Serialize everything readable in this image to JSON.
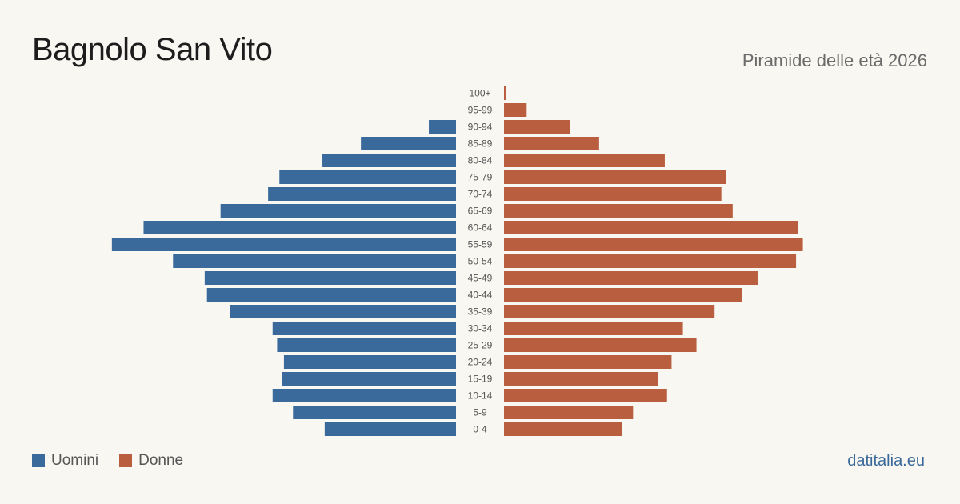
{
  "header": {
    "title": "Bagnolo San Vito",
    "subtitle": "Piramide delle età 2026"
  },
  "legend": {
    "men_label": "Uomini",
    "women_label": "Donne"
  },
  "footer": {
    "source": "datitalia.eu"
  },
  "colors": {
    "men": "#3a6a9b",
    "women": "#b95e3e",
    "background": "#f9f7f2"
  },
  "chart_data": {
    "type": "bar",
    "orientation": "horizontal-pyramid",
    "categories": [
      "100+",
      "95-99",
      "90-94",
      "85-89",
      "80-84",
      "75-79",
      "70-74",
      "65-69",
      "60-64",
      "55-59",
      "50-54",
      "45-49",
      "40-44",
      "35-39",
      "30-34",
      "25-29",
      "20-24",
      "15-19",
      "10-14",
      "5-9",
      "0-4"
    ],
    "series": [
      {
        "name": "Uomini",
        "values": [
          0,
          0,
          12,
          42,
          59,
          78,
          83,
          104,
          138,
          152,
          125,
          111,
          110,
          100,
          81,
          79,
          76,
          77,
          81,
          72,
          58
        ]
      },
      {
        "name": "Donne",
        "values": [
          1,
          10,
          29,
          42,
          71,
          98,
          96,
          101,
          130,
          132,
          129,
          112,
          105,
          93,
          79,
          85,
          74,
          68,
          72,
          57,
          52
        ]
      }
    ],
    "legend_position": "bottom-left",
    "grid": false
  }
}
